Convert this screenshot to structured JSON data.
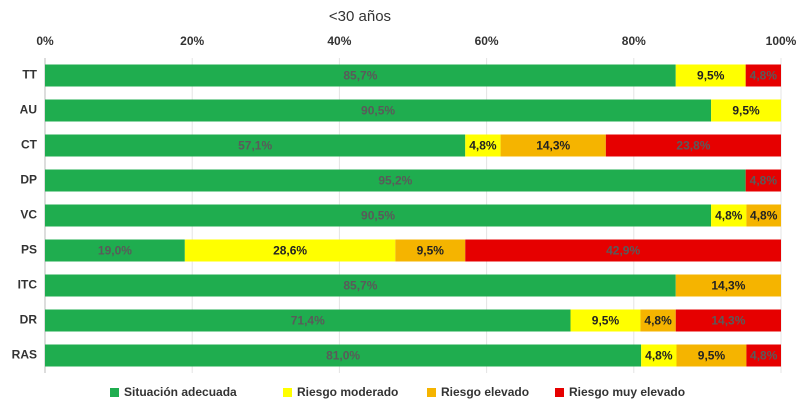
{
  "chart_data": {
    "type": "stacked-bar-horizontal",
    "title": "<30 años",
    "categories": [
      "TT",
      "AU",
      "CT",
      "DP",
      "VC",
      "PS",
      "ITC",
      "DR",
      "RAS"
    ],
    "series": [
      {
        "name": "Situación adecuada",
        "color": "#1fad4f",
        "values": [
          85.7,
          90.5,
          57.1,
          95.2,
          90.5,
          19.0,
          85.7,
          71.4,
          81.0
        ],
        "value_labels": [
          "85,7%",
          "90,5%",
          "57,1%",
          "95,2%",
          "90,5%",
          "19,0%",
          "85,7%",
          "71,4%",
          "81,0%"
        ]
      },
      {
        "name": "Riesgo moderado",
        "color": "#ffff00",
        "values": [
          9.5,
          9.5,
          4.8,
          null,
          4.8,
          28.6,
          null,
          9.5,
          4.8
        ],
        "value_labels": [
          "9,5%",
          "9,5%",
          "4,8%",
          null,
          "4,8%",
          "28,6%",
          null,
          "9,5%",
          "4,8%"
        ]
      },
      {
        "name": "Riesgo elevado",
        "color": "#f5b400",
        "values": [
          null,
          null,
          14.3,
          null,
          4.8,
          9.5,
          14.3,
          4.8,
          9.5
        ],
        "value_labels": [
          null,
          null,
          "14,3%",
          null,
          "4,8%",
          "9,5%",
          "14,3%",
          "4,8%",
          "9,5%"
        ]
      },
      {
        "name": "Riesgo muy elevado",
        "color": "#e60000",
        "values": [
          4.8,
          null,
          23.8,
          4.8,
          null,
          42.9,
          null,
          14.3,
          4.8
        ],
        "value_labels": [
          "4,8%",
          null,
          "23,8%",
          "4,8%",
          null,
          "42,9%",
          null,
          "14,3%",
          "4,8%"
        ]
      }
    ],
    "xlim": [
      0,
      100
    ],
    "xticks": [
      {
        "value": 0,
        "label": "0%"
      },
      {
        "value": 20,
        "label": "20%"
      },
      {
        "value": 40,
        "label": "40%"
      },
      {
        "value": 60,
        "label": "60%"
      },
      {
        "value": 80,
        "label": "80%"
      },
      {
        "value": 100,
        "label": "100%"
      }
    ],
    "grid": true,
    "legend": "bottom"
  }
}
